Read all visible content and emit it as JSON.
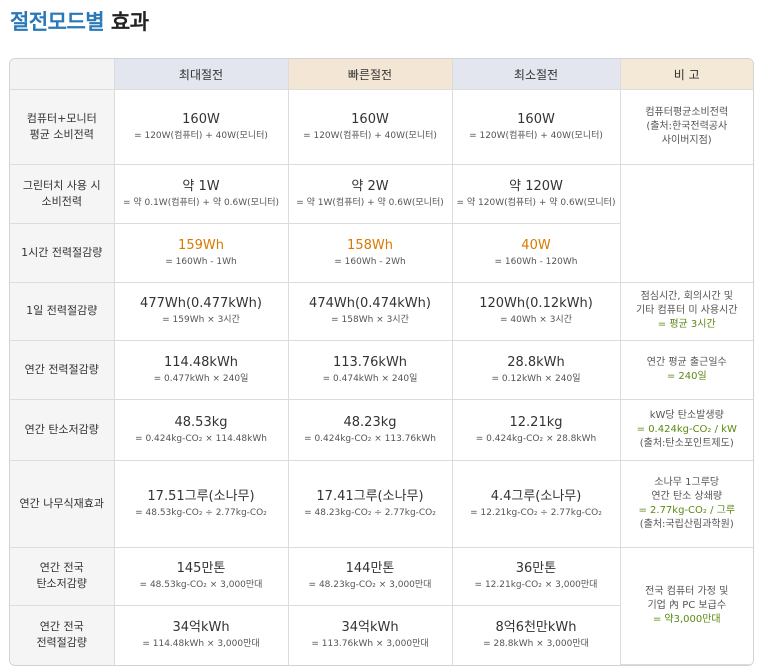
{
  "title": {
    "accent": "절전모드별",
    "rest": "효과"
  },
  "header": {
    "blank": "",
    "max": "최대절전",
    "fast": "빠른절전",
    "min": "최소절전",
    "note": "비 고"
  },
  "rows": [
    {
      "label": [
        "컴퓨터+모니터",
        "평균 소비전력"
      ],
      "max": {
        "main": "160W",
        "sub": "= 120W(컴퓨터) + 40W(모니터)"
      },
      "fast": {
        "main": "160W",
        "sub": "= 120W(컴퓨터) + 40W(모니터)"
      },
      "min": {
        "main": "160W",
        "sub": "= 120W(컴퓨터) + 40W(모니터)"
      },
      "note": [
        "컴퓨터평균소비전력",
        "(출처:한국전력공사",
        "사이버지점)"
      ]
    },
    {
      "label": [
        "그린터치 사용 시",
        "소비전력"
      ],
      "max": {
        "main": "약 1W",
        "sub": "= 약 0.1W(컴퓨터) + 약 0.6W(모니터)"
      },
      "fast": {
        "main": "약 2W",
        "sub": "= 약 1W(컴퓨터) + 약 0.6W(모니터)"
      },
      "min": {
        "main": "약 120W",
        "sub": "= 약 120W(컴퓨터) + 약 0.6W(모니터)"
      },
      "note": []
    },
    {
      "label": [
        "1시간 전력절감량"
      ],
      "max": {
        "main": "159Wh",
        "sub": "= 160Wh - 1Wh"
      },
      "fast": {
        "main": "158Wh",
        "sub": "= 160Wh - 2Wh"
      },
      "min": {
        "main": "40W",
        "sub": "= 160Wh - 120Wh"
      },
      "note": []
    },
    {
      "label": [
        "1일 전력절감량"
      ],
      "max": {
        "main": "477Wh(0.477kWh)",
        "sub": "= 159Wh × 3시간"
      },
      "fast": {
        "main": "474Wh(0.474kWh)",
        "sub": "= 158Wh × 3시간"
      },
      "min": {
        "main": "120Wh(0.12kWh)",
        "sub": "= 40Wh × 3시간"
      },
      "note": [
        "점심시간, 회의시간 및",
        "기타 컴퓨터 미 사용시간",
        "= 평균 3시간"
      ]
    },
    {
      "label": [
        "연간 전력절감량"
      ],
      "max": {
        "main": "114.48kWh",
        "sub": "= 0.477kWh × 240일"
      },
      "fast": {
        "main": "113.76kWh",
        "sub": "= 0.474kWh × 240일"
      },
      "min": {
        "main": "28.8kWh",
        "sub": "= 0.12kWh × 240일"
      },
      "note": [
        "연간 평균 출근일수",
        "= 240일"
      ]
    },
    {
      "label": [
        "연간 탄소저감량"
      ],
      "max": {
        "main": "48.53kg",
        "sub": "= 0.424kg-CO₂ × 114.48kWh"
      },
      "fast": {
        "main": "48.23kg",
        "sub": "= 0.424kg-CO₂ × 113.76kWh"
      },
      "min": {
        "main": "12.21kg",
        "sub": "= 0.424kg-CO₂ × 28.8kWh"
      },
      "note": [
        "kW당 탄소발생량",
        "= 0.424kg-CO₂ / kW",
        "(출처:탄소포인트제도)"
      ]
    },
    {
      "label": [
        "연간 나무식재효과"
      ],
      "max": {
        "main": "17.51그루(소나무)",
        "sub": "= 48.53kg-CO₂ ÷ 2.77kg-CO₂"
      },
      "fast": {
        "main": "17.41그루(소나무)",
        "sub": "= 48.23kg-CO₂ ÷ 2.77kg-CO₂"
      },
      "min": {
        "main": "4.4그루(소나무)",
        "sub": "= 12.21kg-CO₂ ÷ 2.77kg-CO₂"
      },
      "note": [
        "소나무 1그루당",
        "연간 탄소 상쇄량",
        "= 2.77kg-CO₂ / 그루",
        "(출처:국립산림과학원)"
      ]
    },
    {
      "label": [
        "연간 전국",
        "탄소저감량"
      ],
      "max": {
        "main": "145만톤",
        "sub": "= 48.53kg-CO₂ × 3,000만대"
      },
      "fast": {
        "main": "144만톤",
        "sub": "= 48.23kg-CO₂ × 3,000만대"
      },
      "min": {
        "main": "36만톤",
        "sub": "= 12.21kg-CO₂ × 3,000만대"
      },
      "note": [
        "전국 컴퓨터 가정 및",
        "기업 內 PC 보급수",
        "= 약3,000만대"
      ]
    },
    {
      "label": [
        "연간 전국",
        "전력절감량"
      ],
      "max": {
        "main": "34억kWh",
        "sub": "= 114.48kWh × 3,000만대"
      },
      "fast": {
        "main": "34억kWh",
        "sub": "= 113.76kWh × 3,000만대"
      },
      "min": {
        "main": "8억6천만kWh",
        "sub": "= 28.8kWh × 3,000만대"
      }
    }
  ]
}
